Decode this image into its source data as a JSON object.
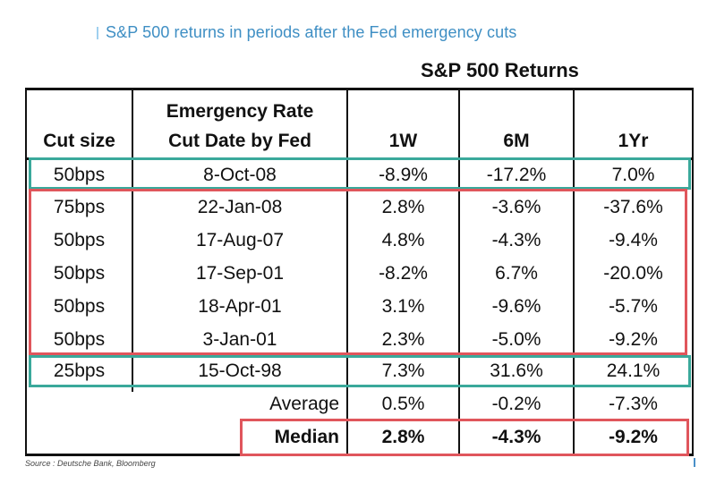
{
  "title": "S&P 500 returns in periods after the Fed emergency cuts",
  "group_header": "S&P 500 Returns",
  "columns": {
    "cut_size": "Cut size",
    "date_line1": "Emergency Rate",
    "date_line2": "Cut Date by Fed",
    "w1": "1W",
    "m6": "6M",
    "yr1": "1Yr"
  },
  "rows": [
    {
      "cut": "50bps",
      "date": "8-Oct-08",
      "w1": "-8.9%",
      "m6": "-17.2%",
      "yr1": "7.0%"
    },
    {
      "cut": "75bps",
      "date": "22-Jan-08",
      "w1": "2.8%",
      "m6": "-3.6%",
      "yr1": "-37.6%"
    },
    {
      "cut": "50bps",
      "date": "17-Aug-07",
      "w1": "4.8%",
      "m6": "-4.3%",
      "yr1": "-9.4%"
    },
    {
      "cut": "50bps",
      "date": "17-Sep-01",
      "w1": "-8.2%",
      "m6": "6.7%",
      "yr1": "-20.0%"
    },
    {
      "cut": "50bps",
      "date": "18-Apr-01",
      "w1": "3.1%",
      "m6": "-9.6%",
      "yr1": "-5.7%"
    },
    {
      "cut": "50bps",
      "date": "3-Jan-01",
      "w1": "2.3%",
      "m6": "-5.0%",
      "yr1": "-9.2%"
    },
    {
      "cut": "25bps",
      "date": "15-Oct-98",
      "w1": "7.3%",
      "m6": "31.6%",
      "yr1": "24.1%"
    }
  ],
  "average": {
    "label": "Average",
    "w1": "0.5%",
    "m6": "-0.2%",
    "yr1": "-7.3%"
  },
  "median": {
    "label": "Median",
    "w1": "2.8%",
    "m6": "-4.3%",
    "yr1": "-9.2%"
  },
  "source": "Source : Deutsche Bank, Bloomberg",
  "colors": {
    "title": "#3f8fc4",
    "highlight_green": "#3aa99b",
    "highlight_red": "#e0565c"
  }
}
